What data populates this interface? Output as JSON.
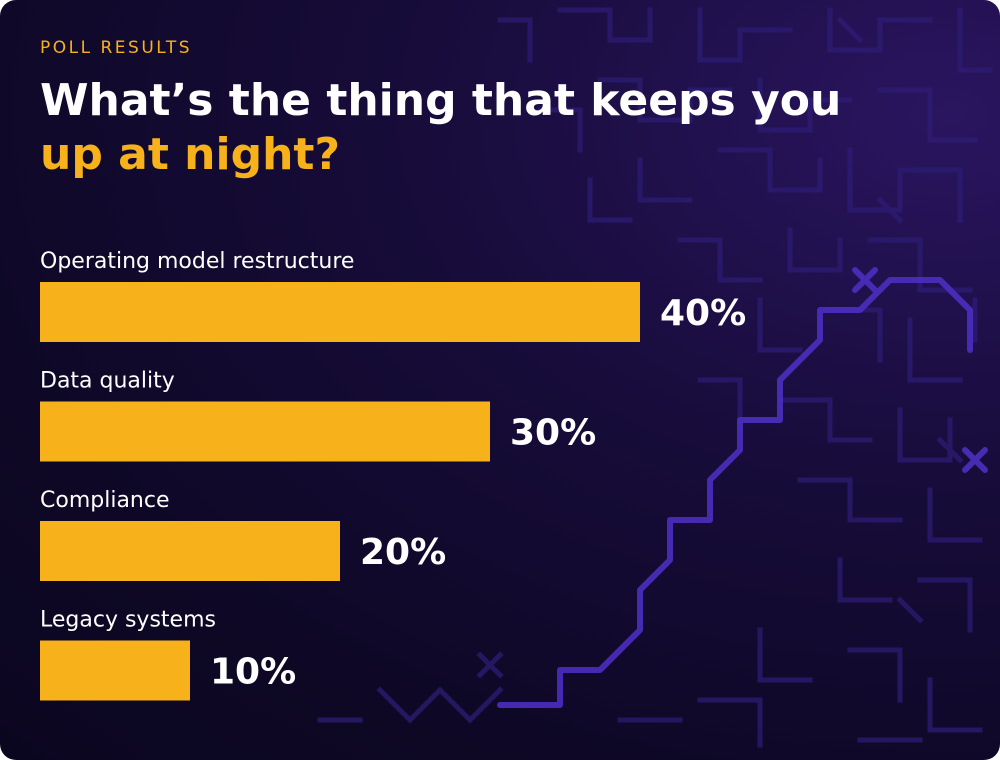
{
  "header": {
    "eyebrow": "POLL RESULTS",
    "title_line1": "What’s the thing that keeps you",
    "title_line2": "up at night?"
  },
  "colors": {
    "background": "#100a2c",
    "bar": "#f7b21b",
    "accent": "#f7b21b",
    "text": "#ffffff",
    "maze_line": "#3a2492",
    "maze_highlight": "#4b2fc0"
  },
  "chart_data": {
    "type": "bar",
    "orientation": "horizontal",
    "categories": [
      "Operating model restructure",
      "Data quality",
      "Compliance",
      "Legacy systems"
    ],
    "values": [
      40,
      30,
      20,
      10
    ],
    "value_labels": [
      "40%",
      "30%",
      "20%",
      "10%"
    ],
    "unit": "%",
    "xlim": [
      0,
      100
    ],
    "title": "What’s the thing that keeps you up at night?",
    "grid": false
  }
}
